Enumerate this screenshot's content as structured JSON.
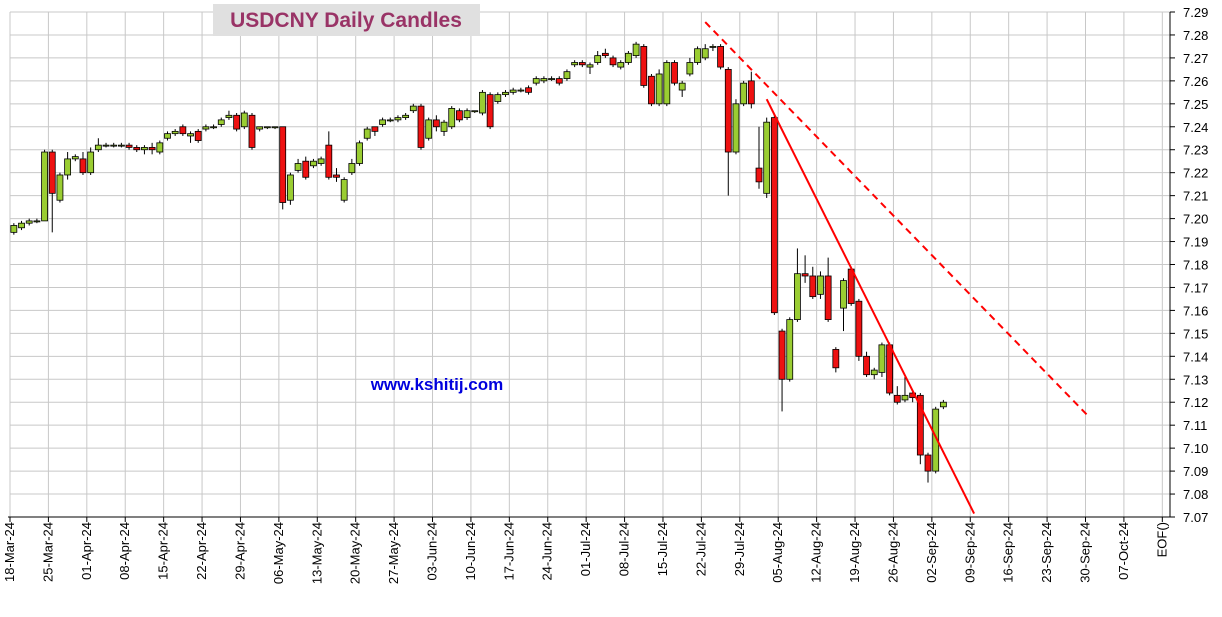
{
  "chart_data": {
    "type": "candlestick",
    "title": "USDCNY Daily Candles",
    "annotation": "www.kshitij.com",
    "up_color": "#9acd32",
    "down_color": "#ee1111",
    "grid": true,
    "xlim": [
      "2024-03-18",
      "2024-10-15"
    ],
    "xticks": [
      {
        "value": "2024-03-18",
        "label": "18-Mar-24"
      },
      {
        "value": "2024-03-25",
        "label": "25-Mar-24"
      },
      {
        "value": "2024-04-01",
        "label": "01-Apr-24"
      },
      {
        "value": "2024-04-08",
        "label": "08-Apr-24"
      },
      {
        "value": "2024-04-15",
        "label": "15-Apr-24"
      },
      {
        "value": "2024-04-22",
        "label": "22-Apr-24"
      },
      {
        "value": "2024-04-29",
        "label": "29-Apr-24"
      },
      {
        "value": "2024-05-06",
        "label": "06-May-24"
      },
      {
        "value": "2024-05-13",
        "label": "13-May-24"
      },
      {
        "value": "2024-05-20",
        "label": "20-May-24"
      },
      {
        "value": "2024-05-27",
        "label": "27-May-24"
      },
      {
        "value": "2024-06-03",
        "label": "03-Jun-24"
      },
      {
        "value": "2024-06-10",
        "label": "10-Jun-24"
      },
      {
        "value": "2024-06-17",
        "label": "17-Jun-24"
      },
      {
        "value": "2024-06-24",
        "label": "24-Jun-24"
      },
      {
        "value": "2024-07-01",
        "label": "01-Jul-24"
      },
      {
        "value": "2024-07-08",
        "label": "08-Jul-24"
      },
      {
        "value": "2024-07-15",
        "label": "15-Jul-24"
      },
      {
        "value": "2024-07-22",
        "label": "22-Jul-24"
      },
      {
        "value": "2024-07-29",
        "label": "29-Jul-24"
      },
      {
        "value": "2024-08-05",
        "label": "05-Aug-24"
      },
      {
        "value": "2024-08-12",
        "label": "12-Aug-24"
      },
      {
        "value": "2024-08-19",
        "label": "19-Aug-24"
      },
      {
        "value": "2024-08-26",
        "label": "26-Aug-24"
      },
      {
        "value": "2024-09-02",
        "label": "02-Sep-24"
      },
      {
        "value": "2024-09-09",
        "label": "09-Sep-24"
      },
      {
        "value": "2024-09-16",
        "label": "16-Sep-24"
      },
      {
        "value": "2024-09-23",
        "label": "23-Sep-24"
      },
      {
        "value": "2024-09-30",
        "label": "30-Sep-24"
      },
      {
        "value": "2024-10-07",
        "label": "07-Oct-24"
      },
      {
        "value": "2024-10-14",
        "label": "EOF()"
      }
    ],
    "ylim": [
      7.07,
      7.29
    ],
    "yticks": [
      7.07,
      7.08,
      7.09,
      {
        "value": 7.1,
        "label": "7.10"
      },
      7.11,
      7.12,
      7.13,
      7.14,
      7.15,
      7.16,
      7.17,
      7.18,
      7.19,
      {
        "value": 7.2,
        "label": "7.20"
      },
      7.21,
      7.22,
      7.23,
      7.24,
      7.25,
      7.26,
      7.27,
      7.28,
      7.29
    ],
    "x": [
      "2024-03-18",
      "2024-03-19",
      "2024-03-20",
      "2024-03-21",
      "2024-03-22",
      "2024-03-25",
      "2024-03-26",
      "2024-03-27",
      "2024-03-28",
      "2024-03-29",
      "2024-04-01",
      "2024-04-02",
      "2024-04-03",
      "2024-04-04",
      "2024-04-05",
      "2024-04-08",
      "2024-04-09",
      "2024-04-10",
      "2024-04-11",
      "2024-04-12",
      "2024-04-15",
      "2024-04-16",
      "2024-04-17",
      "2024-04-18",
      "2024-04-19",
      "2024-04-22",
      "2024-04-23",
      "2024-04-24",
      "2024-04-25",
      "2024-04-26",
      "2024-04-29",
      "2024-04-30",
      "2024-05-01",
      "2024-05-02",
      "2024-05-03",
      "2024-05-06",
      "2024-05-07",
      "2024-05-08",
      "2024-05-09",
      "2024-05-10",
      "2024-05-13",
      "2024-05-14",
      "2024-05-15",
      "2024-05-16",
      "2024-05-17",
      "2024-05-20",
      "2024-05-21",
      "2024-05-22",
      "2024-05-23",
      "2024-05-24",
      "2024-05-27",
      "2024-05-28",
      "2024-05-29",
      "2024-05-30",
      "2024-05-31",
      "2024-06-03",
      "2024-06-04",
      "2024-06-05",
      "2024-06-06",
      "2024-06-07",
      "2024-06-10",
      "2024-06-11",
      "2024-06-12",
      "2024-06-13",
      "2024-06-14",
      "2024-06-17",
      "2024-06-18",
      "2024-06-19",
      "2024-06-20",
      "2024-06-21",
      "2024-06-24",
      "2024-06-25",
      "2024-06-26",
      "2024-06-27",
      "2024-06-28",
      "2024-07-01",
      "2024-07-02",
      "2024-07-03",
      "2024-07-04",
      "2024-07-05",
      "2024-07-08",
      "2024-07-09",
      "2024-07-10",
      "2024-07-11",
      "2024-07-12",
      "2024-07-15",
      "2024-07-16",
      "2024-07-17",
      "2024-07-18",
      "2024-07-19",
      "2024-07-22",
      "2024-07-23",
      "2024-07-24",
      "2024-07-25",
      "2024-07-26",
      "2024-07-29",
      "2024-07-30",
      "2024-07-31",
      "2024-08-01",
      "2024-08-02",
      "2024-08-05",
      "2024-08-06",
      "2024-08-07",
      "2024-08-08",
      "2024-08-09",
      "2024-08-12",
      "2024-08-13",
      "2024-08-14",
      "2024-08-15",
      "2024-08-16",
      "2024-08-19",
      "2024-08-20",
      "2024-08-21",
      "2024-08-22",
      "2024-08-23",
      "2024-08-26",
      "2024-08-27",
      "2024-08-28",
      "2024-08-29",
      "2024-08-30",
      "2024-09-02",
      "2024-09-03"
    ],
    "open": [
      7.194,
      7.196,
      7.198,
      7.199,
      7.199,
      7.229,
      7.208,
      7.219,
      7.226,
      7.226,
      7.22,
      7.23,
      7.232,
      7.232,
      7.232,
      7.232,
      7.231,
      7.23,
      7.231,
      7.229,
      7.235,
      7.237,
      7.24,
      7.236,
      7.238,
      7.239,
      7.24,
      7.241,
      7.244,
      7.245,
      7.24,
      7.245,
      7.239,
      7.24,
      7.24,
      7.24,
      7.208,
      7.221,
      7.225,
      7.223,
      7.224,
      7.232,
      7.219,
      7.208,
      7.22,
      7.224,
      7.235,
      7.24,
      7.241,
      7.243,
      7.243,
      7.244,
      7.247,
      7.249,
      7.235,
      7.243,
      7.238,
      7.24,
      7.247,
      7.244,
      7.247,
      7.246,
      7.254,
      7.251,
      7.254,
      7.255,
      7.256,
      7.257,
      7.259,
      7.26,
      7.261,
      7.261,
      7.261,
      7.267,
      7.268,
      7.266,
      7.268,
      7.272,
      7.27,
      7.266,
      7.268,
      7.271,
      7.275,
      7.262,
      7.25,
      7.25,
      7.268,
      7.256,
      7.263,
      7.268,
      7.27,
      7.275,
      7.275,
      7.265,
      7.229,
      7.25,
      7.26,
      7.222,
      7.211,
      7.244,
      7.151,
      7.13,
      7.156,
      7.176,
      7.175,
      7.167,
      7.175,
      7.143,
      7.161,
      7.178,
      7.164,
      7.14,
      7.132,
      7.133,
      7.145,
      7.123,
      7.121,
      7.124,
      7.123,
      7.097,
      7.09,
      7.118
    ],
    "high": [
      7.198,
      7.199,
      7.2,
      7.2,
      7.23,
      7.23,
      7.22,
      7.229,
      7.228,
      7.229,
      7.231,
      7.235,
      7.233,
      7.233,
      7.233,
      7.233,
      7.232,
      7.232,
      7.233,
      7.234,
      7.238,
      7.239,
      7.241,
      7.238,
      7.239,
      7.241,
      7.241,
      7.244,
      7.247,
      7.246,
      7.247,
      7.246,
      7.24,
      7.24,
      7.24,
      7.24,
      7.22,
      7.226,
      7.227,
      7.226,
      7.227,
      7.238,
      7.222,
      7.218,
      7.226,
      7.234,
      7.24,
      7.24,
      7.244,
      7.244,
      7.245,
      7.246,
      7.25,
      7.25,
      7.244,
      7.245,
      7.243,
      7.249,
      7.248,
      7.248,
      7.247,
      7.256,
      7.255,
      7.255,
      7.256,
      7.257,
      7.257,
      7.258,
      7.262,
      7.262,
      7.262,
      7.262,
      7.265,
      7.269,
      7.269,
      7.268,
      7.273,
      7.274,
      7.271,
      7.269,
      7.273,
      7.277,
      7.276,
      7.263,
      7.265,
      7.269,
      7.269,
      7.26,
      7.27,
      7.275,
      7.276,
      7.276,
      7.276,
      7.266,
      7.252,
      7.26,
      7.264,
      7.24,
      7.244,
      7.245,
      7.152,
      7.157,
      7.187,
      7.184,
      7.179,
      7.177,
      7.183,
      7.144,
      7.174,
      7.179,
      7.165,
      7.142,
      7.135,
      7.146,
      7.146,
      7.127,
      7.131,
      7.125,
      7.124,
      7.098,
      7.118,
      7.121
    ],
    "low": [
      7.193,
      7.195,
      7.197,
      7.198,
      7.199,
      7.194,
      7.207,
      7.217,
      7.225,
      7.219,
      7.219,
      7.229,
      7.231,
      7.231,
      7.231,
      7.23,
      7.229,
      7.228,
      7.228,
      7.228,
      7.234,
      7.236,
      7.236,
      7.233,
      7.233,
      7.238,
      7.239,
      7.24,
      7.243,
      7.238,
      7.239,
      7.23,
      7.238,
      7.239,
      7.239,
      7.204,
      7.206,
      7.22,
      7.217,
      7.222,
      7.223,
      7.217,
      7.216,
      7.207,
      7.219,
      7.223,
      7.234,
      7.236,
      7.24,
      7.242,
      7.242,
      7.243,
      7.246,
      7.23,
      7.234,
      7.238,
      7.236,
      7.239,
      7.242,
      7.243,
      7.246,
      7.245,
      7.239,
      7.25,
      7.253,
      7.254,
      7.255,
      7.254,
      7.258,
      7.259,
      7.26,
      7.258,
      7.26,
      7.266,
      7.266,
      7.263,
      7.267,
      7.27,
      7.266,
      7.265,
      7.267,
      7.27,
      7.257,
      7.249,
      7.249,
      7.249,
      7.258,
      7.253,
      7.262,
      7.267,
      7.269,
      7.273,
      7.265,
      7.21,
      7.228,
      7.249,
      7.248,
      7.213,
      7.209,
      7.158,
      7.116,
      7.129,
      7.155,
      7.172,
      7.165,
      7.165,
      7.155,
      7.133,
      7.151,
      7.162,
      7.138,
      7.131,
      7.13,
      7.131,
      7.123,
      7.119,
      7.12,
      7.12,
      7.093,
      7.085,
      7.089,
      7.117
    ],
    "close": [
      7.197,
      7.198,
      7.199,
      7.199,
      7.229,
      7.211,
      7.219,
      7.226,
      7.227,
      7.22,
      7.229,
      7.232,
      7.232,
      7.232,
      7.232,
      7.231,
      7.23,
      7.231,
      7.23,
      7.233,
      7.237,
      7.238,
      7.237,
      7.237,
      7.234,
      7.24,
      7.24,
      7.243,
      7.245,
      7.239,
      7.246,
      7.231,
      7.24,
      7.24,
      7.24,
      7.207,
      7.219,
      7.224,
      7.218,
      7.225,
      7.226,
      7.218,
      7.218,
      7.217,
      7.224,
      7.233,
      7.239,
      7.238,
      7.243,
      7.243,
      7.244,
      7.245,
      7.249,
      7.231,
      7.243,
      7.24,
      7.242,
      7.248,
      7.243,
      7.247,
      7.247,
      7.255,
      7.24,
      7.254,
      7.255,
      7.256,
      7.256,
      7.255,
      7.261,
      7.261,
      7.261,
      7.259,
      7.264,
      7.268,
      7.267,
      7.267,
      7.271,
      7.271,
      7.267,
      7.268,
      7.272,
      7.276,
      7.258,
      7.25,
      7.263,
      7.268,
      7.259,
      7.259,
      7.268,
      7.274,
      7.274,
      7.275,
      7.266,
      7.229,
      7.25,
      7.259,
      7.25,
      7.216,
      7.242,
      7.159,
      7.13,
      7.156,
      7.176,
      7.175,
      7.166,
      7.175,
      7.156,
      7.135,
      7.173,
      7.163,
      7.14,
      7.132,
      7.134,
      7.145,
      7.124,
      7.12,
      7.123,
      7.122,
      7.097,
      7.09,
      7.117,
      7.12
    ],
    "trendlines": [
      {
        "style": "solid",
        "color": "#ff0000",
        "x": [
          "2024-08-01",
          "2024-09-09"
        ],
        "y": [
          7.252,
          7.0715
        ]
      },
      {
        "style": "dashed",
        "color": "#ff0000",
        "x": [
          "2024-07-22",
          "2024-09-30"
        ],
        "y": [
          7.2856,
          7.1135
        ]
      }
    ]
  }
}
